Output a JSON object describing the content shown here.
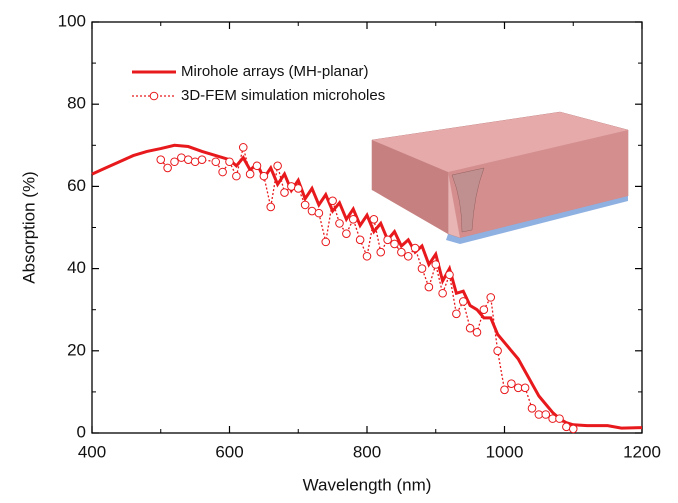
{
  "chart_data": {
    "type": "line",
    "x_label": "Wavelength (nm)",
    "y_label": "Absorption (%)",
    "xlim": [
      400,
      1200
    ],
    "xticks": [
      400,
      600,
      800,
      1000,
      1200
    ],
    "ylim": [
      0,
      100
    ],
    "yticks": [
      0,
      20,
      40,
      60,
      80,
      100
    ],
    "series": [
      {
        "name": "Mirohole arrays (MH-planar)",
        "color": "#e8191c",
        "style": "solid",
        "x": [
          400,
          420,
          440,
          460,
          480,
          500,
          520,
          540,
          560,
          580,
          600,
          610,
          620,
          630,
          640,
          650,
          660,
          670,
          680,
          690,
          700,
          710,
          720,
          730,
          740,
          750,
          760,
          770,
          780,
          790,
          800,
          810,
          820,
          830,
          840,
          850,
          860,
          870,
          880,
          890,
          900,
          910,
          920,
          930,
          940,
          950,
          960,
          970,
          980,
          990,
          1000,
          1010,
          1020,
          1030,
          1040,
          1050,
          1060,
          1070,
          1080,
          1090,
          1100,
          1120,
          1150,
          1170,
          1200
        ],
        "values": [
          63,
          64.5,
          66,
          67.5,
          68.5,
          69.2,
          70,
          69.7,
          68.5,
          67.5,
          66.5,
          65,
          67,
          64,
          65.5,
          62,
          64.5,
          60.5,
          63,
          59,
          61.5,
          57,
          59.5,
          55.5,
          58,
          54,
          56,
          52,
          54.5,
          50.5,
          53,
          49,
          51,
          47,
          49,
          45.5,
          47,
          44,
          45.5,
          41,
          43.5,
          37,
          40,
          34,
          34.5,
          31,
          30,
          28,
          28,
          24,
          22,
          20,
          18,
          15,
          12,
          9,
          7,
          5,
          3.5,
          2.5,
          2,
          1.8,
          1.8,
          1.2,
          1.3
        ]
      },
      {
        "name": "3D-FEM simulation microholes",
        "color": "#e8191c",
        "style": "dotted-circles",
        "x": [
          500,
          510,
          520,
          530,
          540,
          550,
          560,
          580,
          590,
          600,
          610,
          620,
          630,
          640,
          650,
          660,
          670,
          680,
          690,
          700,
          710,
          720,
          730,
          740,
          750,
          760,
          770,
          780,
          790,
          800,
          810,
          820,
          830,
          840,
          850,
          860,
          870,
          880,
          890,
          900,
          910,
          920,
          930,
          940,
          950,
          960,
          970,
          980,
          990,
          1000,
          1010,
          1020,
          1030,
          1040,
          1050,
          1060,
          1070,
          1080,
          1090,
          1100
        ],
        "values": [
          66.5,
          64.5,
          66,
          67,
          66.5,
          66,
          66.5,
          66,
          63.5,
          66,
          62.5,
          69.5,
          63,
          65,
          62.5,
          55,
          65,
          58.5,
          60,
          59.5,
          55.5,
          54,
          53.5,
          46.5,
          56.5,
          51,
          48.5,
          52,
          47,
          43,
          52,
          44,
          47,
          46,
          44,
          43,
          45,
          40,
          35.5,
          41,
          34,
          38.5,
          29,
          32,
          25.5,
          24.5,
          30,
          33,
          20,
          10.5,
          12,
          11,
          11,
          6,
          4.5,
          4.5,
          3.5,
          3.5,
          1.5,
          1
        ]
      }
    ]
  }
}
